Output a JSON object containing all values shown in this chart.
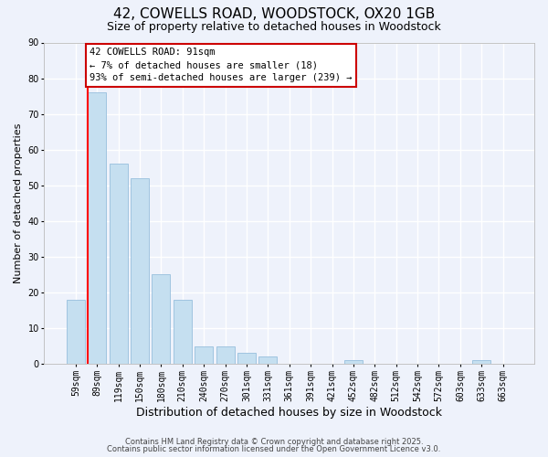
{
  "title": "42, COWELLS ROAD, WOODSTOCK, OX20 1GB",
  "subtitle": "Size of property relative to detached houses in Woodstock",
  "xlabel": "Distribution of detached houses by size in Woodstock",
  "ylabel": "Number of detached properties",
  "categories": [
    "59sqm",
    "89sqm",
    "119sqm",
    "150sqm",
    "180sqm",
    "210sqm",
    "240sqm",
    "270sqm",
    "301sqm",
    "331sqm",
    "361sqm",
    "391sqm",
    "421sqm",
    "452sqm",
    "482sqm",
    "512sqm",
    "542sqm",
    "572sqm",
    "603sqm",
    "633sqm",
    "663sqm"
  ],
  "values": [
    18,
    76,
    56,
    52,
    25,
    18,
    5,
    5,
    3,
    2,
    0,
    0,
    0,
    1,
    0,
    0,
    0,
    0,
    0,
    1,
    0
  ],
  "bar_color": "#c5dff0",
  "bar_edge_color": "#a0c4e0",
  "redline_index": 1,
  "ylim": [
    0,
    90
  ],
  "yticks": [
    0,
    10,
    20,
    30,
    40,
    50,
    60,
    70,
    80,
    90
  ],
  "annotation_line1": "42 COWELLS ROAD: 91sqm",
  "annotation_line2": "← 7% of detached houses are smaller (18)",
  "annotation_line3": "93% of semi-detached houses are larger (239) →",
  "annotation_box_color": "#ffffff",
  "annotation_box_edge": "#cc0000",
  "footer1": "Contains HM Land Registry data © Crown copyright and database right 2025.",
  "footer2": "Contains public sector information licensed under the Open Government Licence v3.0.",
  "background_color": "#eef2fb",
  "grid_color": "#ffffff",
  "title_fontsize": 11,
  "subtitle_fontsize": 9,
  "xlabel_fontsize": 9,
  "ylabel_fontsize": 8,
  "tick_fontsize": 7,
  "annot_fontsize": 7.5,
  "footer_fontsize": 6
}
